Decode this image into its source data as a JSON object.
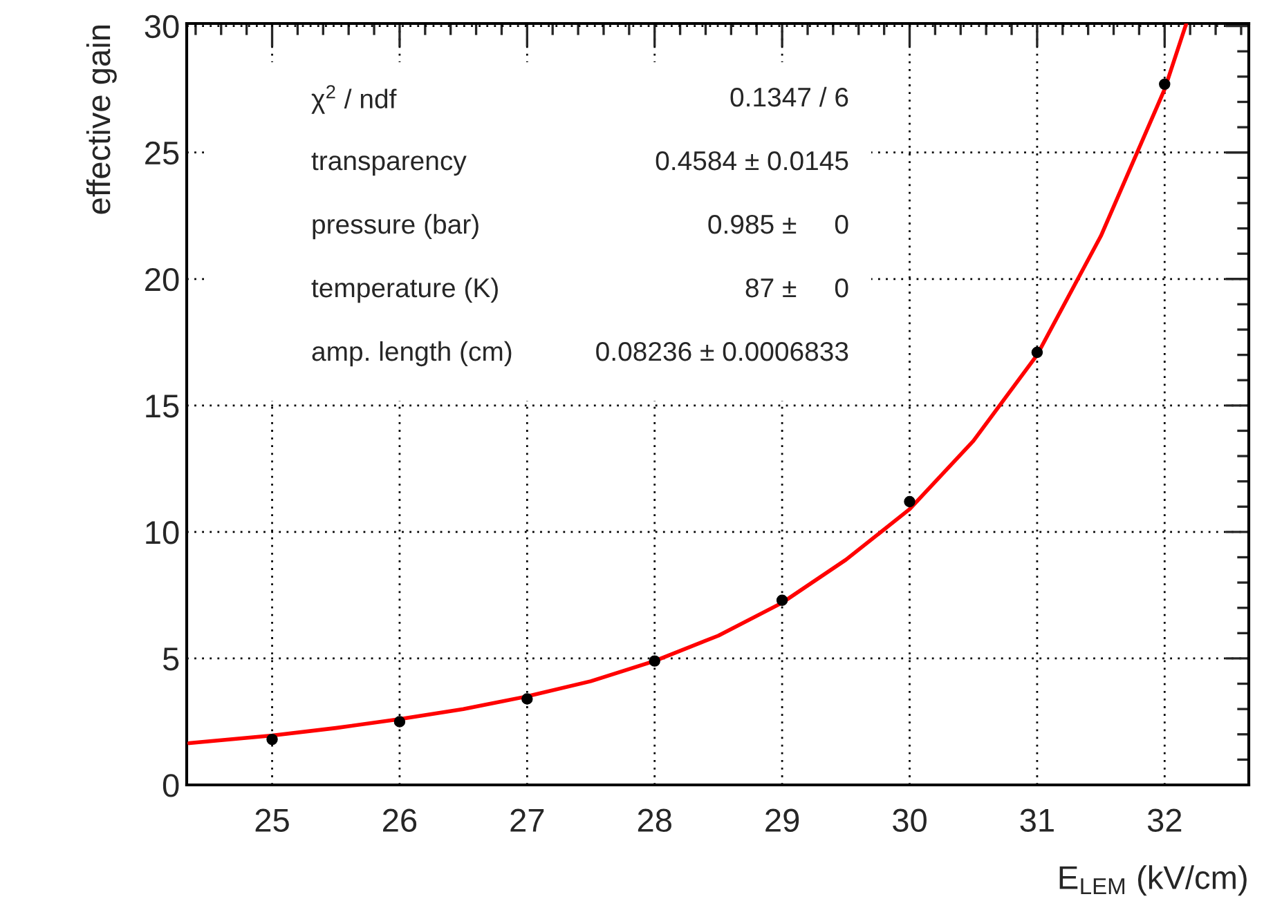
{
  "chart_data": {
    "type": "scatter",
    "xlabel": "E$_{LEM}$ (kV/cm)",
    "ylabel": "effective gain",
    "xlim": [
      24.33,
      32.66
    ],
    "ylim": [
      0,
      30.1
    ],
    "xticks": [
      25,
      26,
      27,
      28,
      29,
      30,
      31,
      32
    ],
    "yticks": [
      0,
      5,
      10,
      15,
      20,
      25,
      30
    ],
    "grid": true,
    "legend": false,
    "marker": "circle",
    "series": [
      {
        "color": "#000000",
        "x": [
          25,
          26,
          27,
          28,
          29,
          30,
          31,
          32
        ],
        "values": [
          1.8,
          2.5,
          3.4,
          4.9,
          7.3,
          11.2,
          17.1,
          27.7
        ]
      },
      {
        "type": "line",
        "color": "#ff0000",
        "line_style": "solid",
        "marker": "none",
        "x": [
          24.35,
          25,
          25.5,
          26,
          26.5,
          27,
          27.5,
          28,
          28.5,
          29,
          29.5,
          30,
          30.5,
          31,
          31.5,
          32,
          32.17
        ],
        "values": [
          1.65,
          1.95,
          2.25,
          2.6,
          3.0,
          3.5,
          4.1,
          4.9,
          5.9,
          7.2,
          8.9,
          10.9,
          13.6,
          17.0,
          21.7,
          27.5,
          30.1
        ]
      }
    ],
    "annotations": [
      "χ$^{2}$ / ndf",
      "0.1347 / 6",
      "transparency",
      "0.4584 ± 0.0145",
      "pressure (bar)",
      "0.985 ±     0",
      "temperature (K)",
      "87 ±     0",
      "amp. length (cm)",
      "0.08236 ± 0.0006833"
    ]
  }
}
